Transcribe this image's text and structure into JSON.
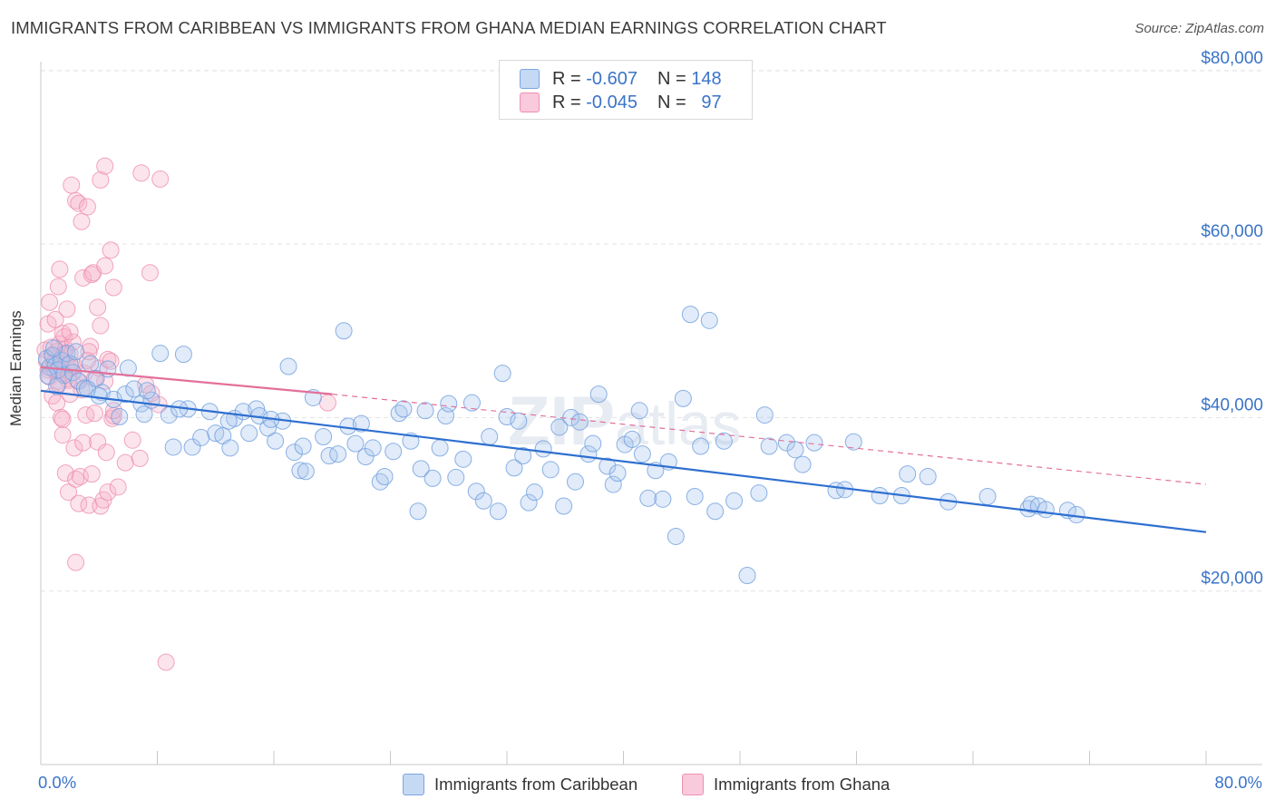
{
  "title": "IMMIGRANTS FROM CARIBBEAN VS IMMIGRANTS FROM GHANA MEDIAN EARNINGS CORRELATION CHART",
  "source": "Source: ZipAtlas.com",
  "watermark": "ZIPatlas",
  "legend": {
    "rows": [
      {
        "r_label": "R =",
        "r_value": "-0.607",
        "n_label": "N =",
        "n_value": "148"
      },
      {
        "r_label": "R =",
        "r_value": "-0.045",
        "n_label": "N =",
        "n_value": "97"
      }
    ]
  },
  "x_axis": {
    "left_label": "0.0%",
    "right_label": "80.0%"
  },
  "colors": {
    "blue": "#6fa0e0",
    "blue_line": "#2e6fd0",
    "pink": "#f29ab8",
    "pink_line": "#e3709a",
    "axis_text": "#3a74c8"
  },
  "chart_data": {
    "type": "scatter",
    "xlabel": "",
    "ylabel": "Median Earnings",
    "xlim": [
      0,
      80
    ],
    "ylim": [
      0,
      85000
    ],
    "y_ticks": [
      {
        "value": 20000,
        "label": "$20,000"
      },
      {
        "value": 40000,
        "label": "$40,000"
      },
      {
        "value": 60000,
        "label": "$60,000"
      },
      {
        "value": 80000,
        "label": "$80,000"
      }
    ],
    "grid": true,
    "legend_position": "bottom",
    "series": [
      {
        "name": "Immigrants from Caribbean",
        "color": "#6fa0e0",
        "trend": {
          "x": [
            0,
            80
          ],
          "y": [
            43100,
            26800
          ],
          "style": "solid"
        },
        "points": [
          [
            0.4,
            46800
          ],
          [
            0.6,
            45800
          ],
          [
            0.8,
            47200
          ],
          [
            1.0,
            46000
          ],
          [
            1.2,
            45500
          ],
          [
            1.4,
            46600
          ],
          [
            1.6,
            44900
          ],
          [
            1.8,
            47400
          ],
          [
            2.0,
            46200
          ],
          [
            2.2,
            45200
          ],
          [
            2.4,
            47600
          ],
          [
            0.5,
            44800
          ],
          [
            0.9,
            48000
          ],
          [
            1.1,
            43600
          ],
          [
            2.6,
            44200
          ],
          [
            3.0,
            43400
          ],
          [
            3.4,
            46200
          ],
          [
            3.8,
            44500
          ],
          [
            4.2,
            42900
          ],
          [
            4.6,
            45600
          ],
          [
            5.0,
            42100
          ],
          [
            5.4,
            40100
          ],
          [
            5.8,
            42700
          ],
          [
            6.4,
            43300
          ],
          [
            6.9,
            41600
          ],
          [
            7.1,
            40400
          ],
          [
            7.6,
            42000
          ],
          [
            8.2,
            47400
          ],
          [
            8.8,
            40300
          ],
          [
            9.1,
            36600
          ],
          [
            9.8,
            47300
          ],
          [
            10.1,
            41000
          ],
          [
            10.4,
            36600
          ],
          [
            11.0,
            37700
          ],
          [
            11.6,
            40700
          ],
          [
            12.0,
            38200
          ],
          [
            12.5,
            37900
          ],
          [
            13.0,
            36500
          ],
          [
            13.3,
            39900
          ],
          [
            13.9,
            40700
          ],
          [
            14.3,
            38200
          ],
          [
            14.8,
            41000
          ],
          [
            15.0,
            40200
          ],
          [
            15.6,
            38800
          ],
          [
            16.1,
            37300
          ],
          [
            16.6,
            39600
          ],
          [
            17.0,
            45900
          ],
          [
            17.4,
            36000
          ],
          [
            17.8,
            33900
          ],
          [
            18.2,
            33800
          ],
          [
            18.7,
            42300
          ],
          [
            19.4,
            37800
          ],
          [
            19.8,
            35600
          ],
          [
            20.4,
            35800
          ],
          [
            20.8,
            50000
          ],
          [
            21.1,
            39000
          ],
          [
            21.6,
            37000
          ],
          [
            22.0,
            39300
          ],
          [
            22.3,
            35500
          ],
          [
            22.8,
            36500
          ],
          [
            23.3,
            32600
          ],
          [
            23.6,
            33200
          ],
          [
            24.2,
            36100
          ],
          [
            24.6,
            40500
          ],
          [
            24.9,
            41000
          ],
          [
            25.4,
            37300
          ],
          [
            25.9,
            29200
          ],
          [
            26.1,
            34100
          ],
          [
            26.4,
            40800
          ],
          [
            26.9,
            33000
          ],
          [
            27.4,
            36500
          ],
          [
            27.8,
            40200
          ],
          [
            28.0,
            41600
          ],
          [
            28.5,
            33100
          ],
          [
            29.0,
            35200
          ],
          [
            29.6,
            41700
          ],
          [
            29.9,
            31500
          ],
          [
            30.4,
            30400
          ],
          [
            30.8,
            37800
          ],
          [
            31.4,
            29200
          ],
          [
            31.7,
            45100
          ],
          [
            32.0,
            40100
          ],
          [
            32.5,
            34200
          ],
          [
            32.8,
            39600
          ],
          [
            33.1,
            35600
          ],
          [
            33.5,
            30200
          ],
          [
            33.9,
            31400
          ],
          [
            34.5,
            36400
          ],
          [
            35.0,
            34000
          ],
          [
            35.6,
            38900
          ],
          [
            35.9,
            29800
          ],
          [
            36.4,
            40000
          ],
          [
            36.7,
            32600
          ],
          [
            37.0,
            39500
          ],
          [
            37.6,
            35800
          ],
          [
            37.9,
            37000
          ],
          [
            38.3,
            42700
          ],
          [
            38.9,
            34400
          ],
          [
            39.3,
            32300
          ],
          [
            39.6,
            33600
          ],
          [
            40.1,
            36900
          ],
          [
            40.6,
            37500
          ],
          [
            41.1,
            40800
          ],
          [
            41.3,
            35800
          ],
          [
            41.7,
            30700
          ],
          [
            42.2,
            33900
          ],
          [
            42.7,
            30600
          ],
          [
            43.1,
            34900
          ],
          [
            43.6,
            26300
          ],
          [
            44.1,
            42200
          ],
          [
            44.6,
            51900
          ],
          [
            44.9,
            30900
          ],
          [
            45.3,
            36700
          ],
          [
            45.9,
            51200
          ],
          [
            46.3,
            29200
          ],
          [
            46.9,
            37300
          ],
          [
            47.6,
            30400
          ],
          [
            48.5,
            21800
          ],
          [
            49.3,
            31300
          ],
          [
            49.7,
            40300
          ],
          [
            50.0,
            36700
          ],
          [
            51.2,
            37100
          ],
          [
            51.8,
            36300
          ],
          [
            52.3,
            34600
          ],
          [
            53.1,
            37100
          ],
          [
            54.6,
            31600
          ],
          [
            55.2,
            31700
          ],
          [
            55.8,
            37200
          ],
          [
            57.6,
            31000
          ],
          [
            59.5,
            33500
          ],
          [
            59.1,
            31000
          ],
          [
            60.9,
            33200
          ],
          [
            62.3,
            30300
          ],
          [
            65.0,
            30900
          ],
          [
            67.8,
            29500
          ],
          [
            68.0,
            30000
          ],
          [
            68.5,
            29800
          ],
          [
            69.0,
            29400
          ],
          [
            70.5,
            29300
          ],
          [
            71.1,
            28800
          ],
          [
            3.2,
            43300
          ],
          [
            4.0,
            42500
          ],
          [
            6.0,
            45700
          ],
          [
            7.3,
            43100
          ],
          [
            9.5,
            41000
          ],
          [
            12.9,
            39600
          ],
          [
            15.8,
            39800
          ],
          [
            18.0,
            36700
          ]
        ]
      },
      {
        "name": "Immigrants from Ghana",
        "color": "#f29ab8",
        "trend": {
          "x": [
            0,
            20
          ],
          "y": [
            45800,
            42700
          ],
          "style": "solid",
          "extension": {
            "x": [
              20,
              80
            ],
            "y": [
              42700,
              32300
            ],
            "style": "dashed"
          }
        },
        "points": [
          [
            0.3,
            47800
          ],
          [
            0.4,
            46500
          ],
          [
            0.5,
            45500
          ],
          [
            0.6,
            44700
          ],
          [
            0.7,
            48100
          ],
          [
            0.8,
            47100
          ],
          [
            0.9,
            46300
          ],
          [
            1.0,
            45400
          ],
          [
            1.1,
            47600
          ],
          [
            1.2,
            44200
          ],
          [
            1.3,
            48500
          ],
          [
            1.4,
            46800
          ],
          [
            1.5,
            45100
          ],
          [
            1.6,
            49300
          ],
          [
            1.7,
            47900
          ],
          [
            1.8,
            46000
          ],
          [
            1.9,
            44800
          ],
          [
            2.0,
            47300
          ],
          [
            2.1,
            45700
          ],
          [
            2.2,
            48700
          ],
          [
            0.5,
            50800
          ],
          [
            0.6,
            53300
          ],
          [
            1.0,
            51300
          ],
          [
            1.2,
            55100
          ],
          [
            1.3,
            57100
          ],
          [
            1.5,
            49700
          ],
          [
            1.8,
            52500
          ],
          [
            2.0,
            49900
          ],
          [
            0.8,
            42500
          ],
          [
            1.1,
            41700
          ],
          [
            1.4,
            40000
          ],
          [
            1.5,
            38000
          ],
          [
            1.7,
            33600
          ],
          [
            1.9,
            31400
          ],
          [
            2.3,
            36500
          ],
          [
            2.4,
            32900
          ],
          [
            2.6,
            30100
          ],
          [
            2.7,
            33200
          ],
          [
            2.9,
            37100
          ],
          [
            3.1,
            40300
          ],
          [
            3.3,
            29900
          ],
          [
            3.5,
            33500
          ],
          [
            3.7,
            40500
          ],
          [
            3.9,
            37200
          ],
          [
            4.1,
            29800
          ],
          [
            4.3,
            30500
          ],
          [
            4.6,
            31400
          ],
          [
            4.9,
            39900
          ],
          [
            5.0,
            40200
          ],
          [
            5.3,
            32000
          ],
          [
            5.8,
            34800
          ],
          [
            6.3,
            37400
          ],
          [
            6.8,
            35300
          ],
          [
            7.2,
            43800
          ],
          [
            7.6,
            42800
          ],
          [
            8.1,
            41500
          ],
          [
            2.1,
            66800
          ],
          [
            2.4,
            65000
          ],
          [
            2.6,
            64700
          ],
          [
            2.8,
            62600
          ],
          [
            3.2,
            64300
          ],
          [
            4.1,
            67400
          ],
          [
            4.4,
            69000
          ],
          [
            6.9,
            68200
          ],
          [
            8.2,
            67500
          ],
          [
            2.9,
            56100
          ],
          [
            3.5,
            56500
          ],
          [
            3.6,
            56700
          ],
          [
            4.4,
            57500
          ],
          [
            4.8,
            59300
          ],
          [
            5.0,
            55000
          ],
          [
            7.5,
            56700
          ],
          [
            3.9,
            52700
          ],
          [
            4.1,
            50600
          ],
          [
            3.4,
            48200
          ],
          [
            4.0,
            45700
          ],
          [
            4.4,
            44200
          ],
          [
            4.6,
            46700
          ],
          [
            2.3,
            46000
          ],
          [
            2.5,
            44300
          ],
          [
            2.8,
            43200
          ],
          [
            3.0,
            45100
          ],
          [
            3.2,
            46600
          ],
          [
            4.8,
            46500
          ],
          [
            5.0,
            40800
          ],
          [
            1.6,
            47300
          ],
          [
            1.9,
            44300
          ],
          [
            2.0,
            42700
          ],
          [
            0.9,
            45600
          ],
          [
            1.2,
            43900
          ],
          [
            3.3,
            47600
          ],
          [
            3.7,
            44500
          ],
          [
            2.4,
            23300
          ],
          [
            8.6,
            11800
          ],
          [
            4.5,
            36000
          ],
          [
            19.7,
            41700
          ],
          [
            1.5,
            39800
          ]
        ]
      }
    ]
  }
}
